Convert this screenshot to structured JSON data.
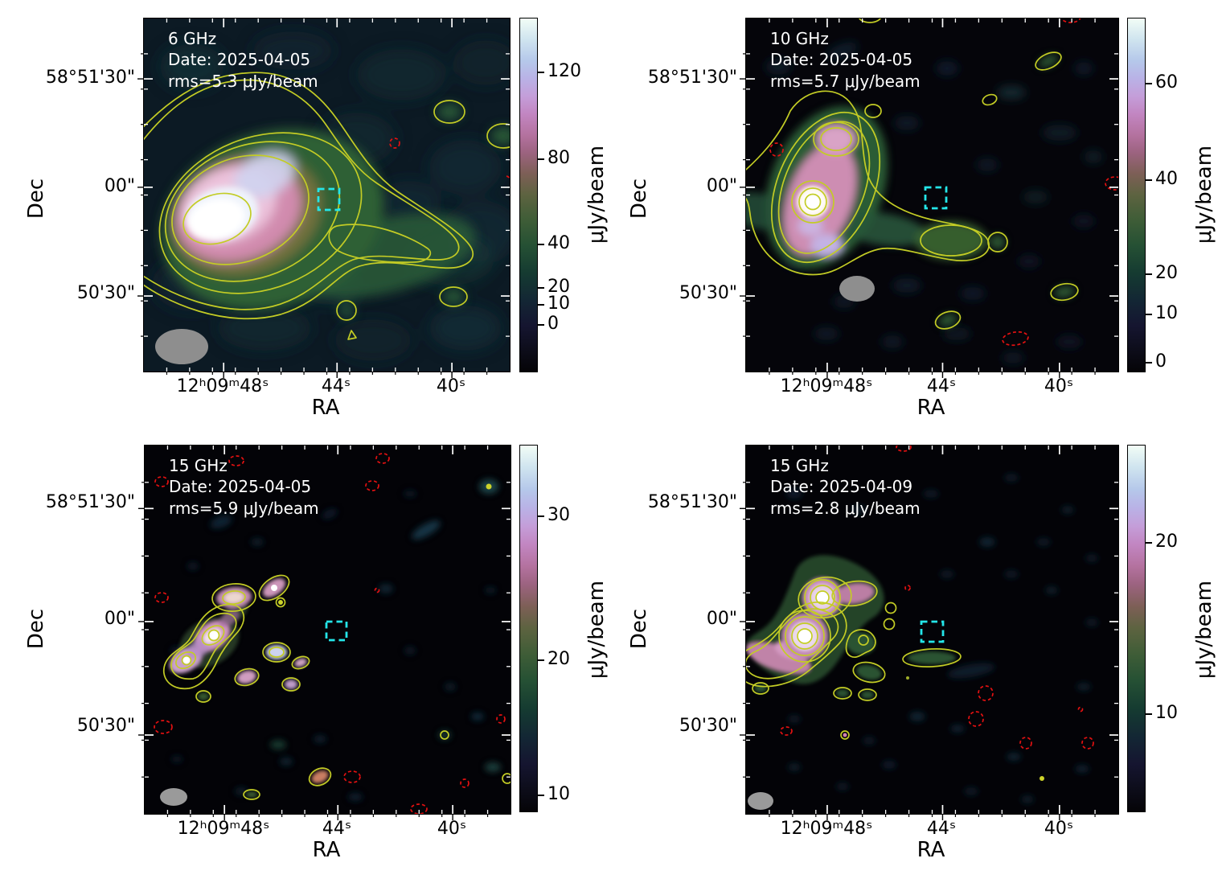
{
  "figure": {
    "description": "2x2 grid of VLA radio continuum maps with contours and colorbars",
    "accent_colors": {
      "positive_contour": "#c3cc25",
      "negative_contour": "#e31111",
      "marker_box": "#24e6e9",
      "beam": "#8e8e8e"
    }
  },
  "panels": [
    {
      "annotation": {
        "freq": "6 GHz",
        "date": "Date: 2025-04-05",
        "rms": "rms=5.3 μJy/beam"
      },
      "axes": {
        "xlabel": "RA",
        "ylabel": "Dec",
        "xticks": [
          "12ʰ09ᵐ48ˢ",
          "44ˢ",
          "40ˢ"
        ],
        "yticks": [
          "58°51'30\"",
          "00\"",
          "50'30\""
        ]
      },
      "colorbar": {
        "label": "μJy/beam",
        "ticks": [
          "120",
          "80",
          "40",
          "20",
          "10",
          "0"
        ]
      }
    },
    {
      "annotation": {
        "freq": "10 GHz",
        "date": "Date: 2025-04-05",
        "rms": "rms=5.7 μJy/beam"
      },
      "axes": {
        "xlabel": "RA",
        "ylabel": "Dec",
        "xticks": [
          "12ʰ09ᵐ48ˢ",
          "44ˢ",
          "40ˢ"
        ],
        "yticks": [
          "58°51'30\"",
          "00\"",
          "50'30\""
        ]
      },
      "colorbar": {
        "label": "μJy/beam",
        "ticks": [
          "60",
          "40",
          "20",
          "10",
          "0"
        ]
      }
    },
    {
      "annotation": {
        "freq": "15 GHz",
        "date": "Date: 2025-04-05",
        "rms": "rms=5.9 μJy/beam"
      },
      "axes": {
        "xlabel": "RA",
        "ylabel": "Dec",
        "xticks": [
          "12ʰ09ᵐ48ˢ",
          "44ˢ",
          "40ˢ"
        ],
        "yticks": [
          "58°51'30\"",
          "00\"",
          "50'30\""
        ]
      },
      "colorbar": {
        "label": "μJy/beam",
        "ticks": [
          "30",
          "20",
          "10"
        ]
      }
    },
    {
      "annotation": {
        "freq": "15 GHz",
        "date": "Date: 2025-04-09",
        "rms": "rms=2.8 μJy/beam"
      },
      "axes": {
        "xlabel": "RA",
        "ylabel": "Dec",
        "xticks": [
          "12ʰ09ᵐ48ˢ",
          "44ˢ",
          "40ˢ"
        ],
        "yticks": [
          "58°51'30\"",
          "00\"",
          "50'30\""
        ]
      },
      "colorbar": {
        "label": "μJy/beam",
        "ticks": [
          "20",
          "10"
        ]
      }
    }
  ],
  "chart_data": [
    {
      "type": "heatmap",
      "panel": "top-left",
      "title": "6 GHz",
      "date": "2025-04-05",
      "rms_uJy_per_beam": 5.3,
      "xlabel": "RA",
      "ylabel": "Dec",
      "xticklabels": [
        "12h09m48s",
        "44s",
        "40s"
      ],
      "yticklabels": [
        "58°51'30\"",
        "00\"",
        "50'30\""
      ],
      "colorbar_label": "μJy/beam",
      "colorbar_ticks": [
        120,
        80,
        40,
        20,
        10,
        0
      ],
      "colorbar_scale": "nonlinear (asinh-like stretch)",
      "overlays": [
        "yellow positive contours (~7 levels)",
        "red dashed negative contour",
        "cyan dashed square marker right of map center",
        "gray beam ellipse bottom-left"
      ],
      "description": "Bright extended source with white/pink core east of center and a low-level green emission tail extending toward the west; mottled dark teal background."
    },
    {
      "type": "heatmap",
      "panel": "top-right",
      "title": "10 GHz",
      "date": "2025-04-05",
      "rms_uJy_per_beam": 5.7,
      "xlabel": "RA",
      "ylabel": "Dec",
      "xticklabels": [
        "12h09m48s",
        "44s",
        "40s"
      ],
      "yticklabels": [
        "58°51'30\"",
        "00\"",
        "50'30\""
      ],
      "colorbar_label": "μJy/beam",
      "colorbar_ticks": [
        60,
        40,
        20,
        10,
        0
      ],
      "colorbar_scale": "nonlinear (asinh-like stretch)",
      "overlays": [
        "yellow positive contours",
        "red dashed negative contours",
        "cyan dashed square marker",
        "gray beam ellipse below the source"
      ],
      "description": "Compact bright core with ringed contours and pink envelope east of center, short green extension to the west; several small contoured noise blobs on nearly black background."
    },
    {
      "type": "heatmap",
      "panel": "bottom-left",
      "title": "15 GHz",
      "date": "2025-04-05",
      "rms_uJy_per_beam": 5.9,
      "xlabel": "RA",
      "ylabel": "Dec",
      "xticklabels": [
        "12h09m48s",
        "44s",
        "40s"
      ],
      "yticklabels": [
        "58°51'30\"",
        "00\"",
        "50'30\""
      ],
      "colorbar_label": "μJy/beam",
      "colorbar_ticks": [
        30,
        20,
        10
      ],
      "colorbar_scale": "nonlinear (asinh-like stretch)",
      "overlays": [
        "yellow positive contours around many small knots",
        "red dashed negative contours scattered",
        "cyan dashed square marker",
        "small gray beam ellipse bottom-left"
      ],
      "description": "Source breaks up into a chain of compact knots with white/pink cores east of center on a nearly black background."
    },
    {
      "type": "heatmap",
      "panel": "bottom-right",
      "title": "15 GHz",
      "date": "2025-04-09",
      "rms_uJy_per_beam": 2.8,
      "xlabel": "RA",
      "ylabel": "Dec",
      "xticklabels": [
        "12h09m48s",
        "44s",
        "40s"
      ],
      "yticklabels": [
        "58°51'30\"",
        "00\"",
        "50'30\""
      ],
      "colorbar_label": "μJy/beam",
      "colorbar_ticks": [
        20,
        10
      ],
      "colorbar_scale": "nonlinear (asinh-like stretch)",
      "overlays": [
        "yellow positive contours with concentric rings on two bright knots",
        "red dashed negative contours",
        "cyan dashed square marker",
        "small gray beam ellipse bottom-left"
      ],
      "description": "Two bright multi-ring compact knots with a pink tail to the southwest plus several low-level green contour patches."
    }
  ]
}
